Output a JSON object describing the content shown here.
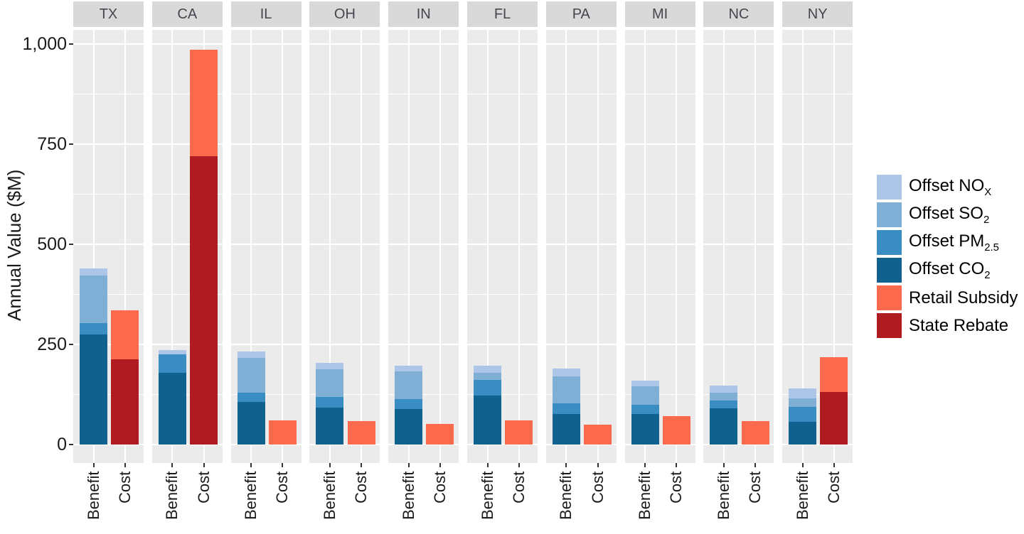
{
  "chart_data": {
    "type": "bar",
    "title": "",
    "xlabel": "",
    "ylabel": "Annual Value ($M)",
    "ylim": [
      0,
      1000
    ],
    "grid": "on",
    "legend_position": "right",
    "yticks": [
      {
        "value": 0,
        "label": "0"
      },
      {
        "value": 250,
        "label": "250"
      },
      {
        "value": 500,
        "label": "500"
      },
      {
        "value": 750,
        "label": "750"
      },
      {
        "value": 1000,
        "label": "1,000"
      }
    ],
    "x_categories": [
      "Benefit",
      "Cost"
    ],
    "stack_order_benefit": [
      "offset_co2",
      "offset_pm25",
      "offset_so2",
      "offset_nox"
    ],
    "stack_order_cost": [
      "state_rebate",
      "retail_subsidy"
    ],
    "facets": [
      {
        "state": "TX",
        "benefit": {
          "offset_co2": 275,
          "offset_pm25": 28,
          "offset_so2": 119,
          "offset_nox": 18
        },
        "cost": {
          "state_rebate": 212,
          "retail_subsidy": 124
        }
      },
      {
        "state": "CA",
        "benefit": {
          "offset_co2": 179,
          "offset_pm25": 47,
          "offset_so2": 0,
          "offset_nox": 10
        },
        "cost": {
          "state_rebate": 720,
          "retail_subsidy": 265
        }
      },
      {
        "state": "IL",
        "benefit": {
          "offset_co2": 106,
          "offset_pm25": 24,
          "offset_so2": 87,
          "offset_nox": 15
        },
        "cost": {
          "state_rebate": 0,
          "retail_subsidy": 60
        }
      },
      {
        "state": "OH",
        "benefit": {
          "offset_co2": 92,
          "offset_pm25": 26,
          "offset_so2": 70,
          "offset_nox": 16
        },
        "cost": {
          "state_rebate": 0,
          "retail_subsidy": 58
        }
      },
      {
        "state": "IN",
        "benefit": {
          "offset_co2": 89,
          "offset_pm25": 25,
          "offset_so2": 69,
          "offset_nox": 13
        },
        "cost": {
          "state_rebate": 0,
          "retail_subsidy": 52
        }
      },
      {
        "state": "FL",
        "benefit": {
          "offset_co2": 123,
          "offset_pm25": 38,
          "offset_so2": 18,
          "offset_nox": 18
        },
        "cost": {
          "state_rebate": 0,
          "retail_subsidy": 61
        }
      },
      {
        "state": "PA",
        "benefit": {
          "offset_co2": 76,
          "offset_pm25": 26,
          "offset_so2": 69,
          "offset_nox": 19
        },
        "cost": {
          "state_rebate": 0,
          "retail_subsidy": 50
        }
      },
      {
        "state": "MI",
        "benefit": {
          "offset_co2": 77,
          "offset_pm25": 22,
          "offset_so2": 46,
          "offset_nox": 15
        },
        "cost": {
          "state_rebate": 0,
          "retail_subsidy": 71
        }
      },
      {
        "state": "NC",
        "benefit": {
          "offset_co2": 90,
          "offset_pm25": 20,
          "offset_so2": 20,
          "offset_nox": 17
        },
        "cost": {
          "state_rebate": 0,
          "retail_subsidy": 58
        }
      },
      {
        "state": "NY",
        "benefit": {
          "offset_co2": 56,
          "offset_pm25": 38,
          "offset_so2": 21,
          "offset_nox": 25
        },
        "cost": {
          "state_rebate": 131,
          "retail_subsidy": 87
        }
      }
    ]
  },
  "legend": {
    "items": [
      {
        "name": "offset_nox",
        "label": "Offset NO",
        "sub": "X",
        "color": "#adc5e6"
      },
      {
        "name": "offset_so2",
        "label": "Offset SO",
        "sub": "2",
        "color": "#7fafd4"
      },
      {
        "name": "offset_pm25",
        "label": "Offset PM",
        "sub": "2.5",
        "color": "#3a8dc3"
      },
      {
        "name": "offset_co2",
        "label": "Offset CO",
        "sub": "2",
        "color": "#11618f"
      },
      {
        "name": "retail_subsidy",
        "label": "Retail Subsidy",
        "sub": "",
        "color": "#fb6a4d"
      },
      {
        "name": "state_rebate",
        "label": "State Rebate",
        "sub": "",
        "color": "#b01b21"
      }
    ]
  },
  "colors": {
    "panel_bg": "#ebebeb",
    "strip_bg": "#d9d9d9",
    "strip_text": "#45464e",
    "gridline": "#ffffff",
    "axis_text": "#1a1a1a",
    "tick": "#333333"
  }
}
